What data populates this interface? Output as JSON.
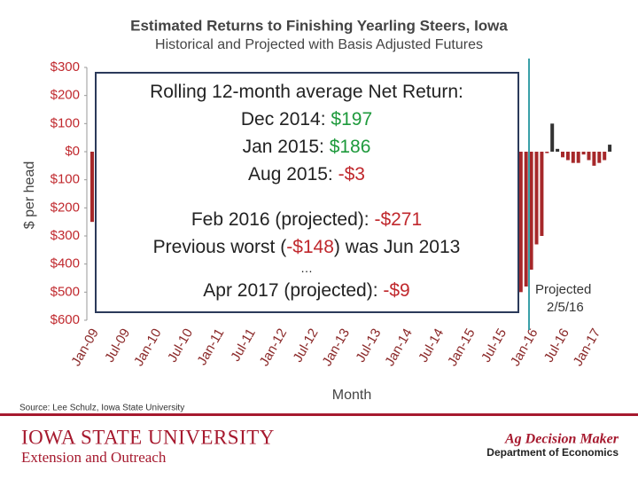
{
  "chart_data": {
    "type": "bar",
    "title": "Estimated Returns to Finishing Yearling Steers, Iowa",
    "subtitle": "Historical and Projected with Basis Adjusted Futures",
    "y_label": "$ per head",
    "x_label": "Month",
    "categories": [
      "Jan-09",
      null,
      null,
      null,
      null,
      null,
      "Jul-09",
      null,
      null,
      null,
      null,
      null,
      "Jan-10",
      null,
      null,
      null,
      null,
      null,
      "Jul-10",
      null,
      null,
      null,
      null,
      null,
      "Jan-11",
      null,
      null,
      null,
      null,
      null,
      "Jul-11",
      null,
      null,
      null,
      null,
      null,
      "Jan-12",
      null,
      null,
      null,
      null,
      null,
      "Jul-12",
      null,
      null,
      null,
      null,
      null,
      "Jan-13",
      null,
      null,
      null,
      null,
      null,
      "Jul-13",
      null,
      null,
      null,
      null,
      null,
      "Jan-14",
      null,
      null,
      null,
      null,
      null,
      "Jul-14",
      null,
      null,
      null,
      null,
      null,
      "Jan-15",
      null,
      null,
      null,
      null,
      null,
      "Jul-15",
      null,
      null,
      null,
      null,
      null,
      "Jan-16",
      null,
      null,
      null,
      null,
      null,
      "Jul-16",
      null,
      null,
      null,
      null,
      null,
      "Jan-17",
      null,
      null,
      null
    ],
    "values": [
      -250,
      null,
      null,
      null,
      null,
      null,
      null,
      null,
      null,
      null,
      null,
      null,
      null,
      null,
      null,
      null,
      null,
      null,
      null,
      null,
      null,
      null,
      null,
      null,
      null,
      null,
      null,
      null,
      null,
      null,
      null,
      null,
      null,
      null,
      null,
      null,
      null,
      null,
      null,
      null,
      null,
      null,
      null,
      null,
      null,
      null,
      null,
      null,
      null,
      null,
      null,
      null,
      null,
      null,
      null,
      null,
      null,
      null,
      null,
      null,
      null,
      null,
      null,
      null,
      null,
      null,
      null,
      null,
      null,
      null,
      null,
      null,
      null,
      null,
      null,
      null,
      null,
      null,
      null,
      null,
      null,
      null,
      -500,
      -480,
      -420,
      -330,
      -300,
      -5,
      100,
      10,
      -20,
      -30,
      -40,
      -40,
      -10,
      -30,
      -50,
      -40,
      -30,
      25
    ],
    "colors": {
      "positive": "#333333",
      "negative": "#a6282a"
    },
    "ylim": [
      -600,
      300
    ],
    "yticks": [
      {
        "value": 300,
        "label": "$300"
      },
      {
        "value": 200,
        "label": "$200"
      },
      {
        "value": 100,
        "label": "$100"
      },
      {
        "value": 0,
        "label": "$0"
      },
      {
        "value": -100,
        "label": "$100"
      },
      {
        "value": -200,
        "label": "$200"
      },
      {
        "value": -300,
        "label": "$300"
      },
      {
        "value": -400,
        "label": "$400"
      },
      {
        "value": -500,
        "label": "$500"
      },
      {
        "value": -600,
        "label": "$600"
      }
    ],
    "projected_label": [
      "Projected",
      "2/5/16"
    ],
    "annotation": [
      [
        "Rolling 12-month average Net Return:"
      ],
      [
        "Dec 2014: ",
        "$197"
      ],
      [
        "Jan 2015: ",
        "$186"
      ],
      [
        "Aug 2015: ",
        "-$3"
      ],
      [
        "Feb 2016 (projected): ",
        "-$271"
      ],
      [
        "Previous worst (",
        "-$148",
        ") was Jun 2013"
      ],
      [
        "…"
      ],
      [
        "Apr 2017 (projected): ",
        "-$9"
      ]
    ],
    "source": "Source: Lee Schulz, Iowa State University"
  },
  "footer": {
    "university": "IOWA STATE UNIVERSITY",
    "extension": "Extension and Outreach",
    "program": "Ag Decision Maker",
    "department": "Department of Economics"
  }
}
